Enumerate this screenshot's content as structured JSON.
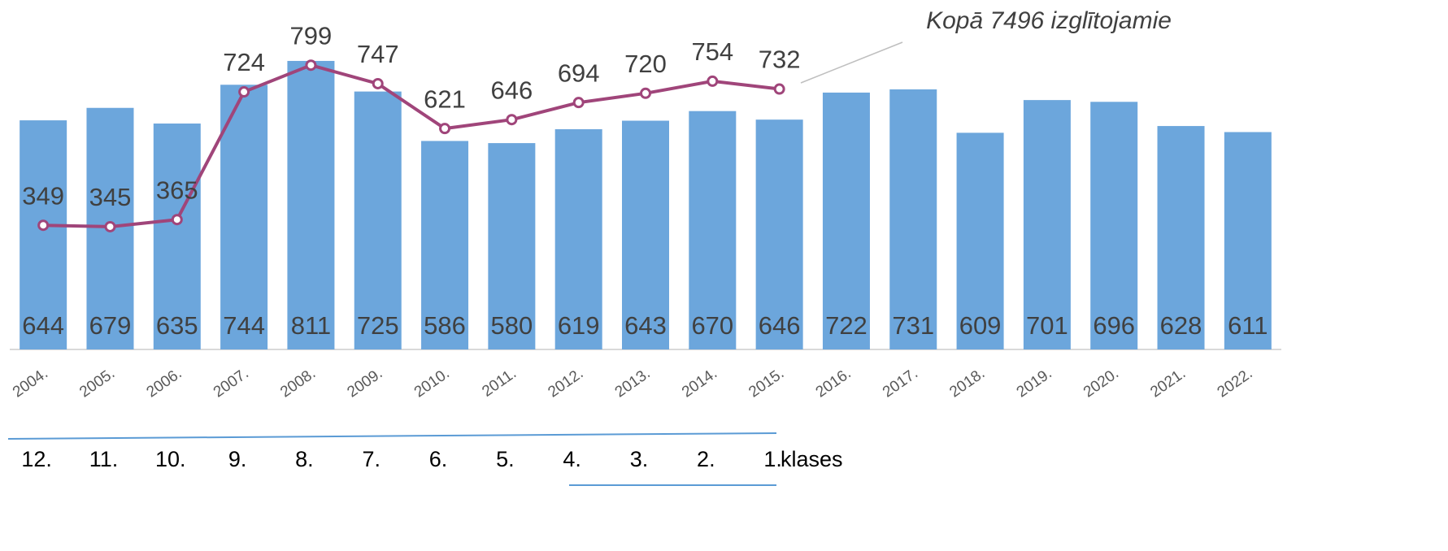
{
  "chart_data": {
    "type": "bar",
    "categories": [
      "2004.",
      "2005.",
      "2006.",
      "2007.",
      "2008.",
      "2009.",
      "2010.",
      "2011.",
      "2012.",
      "2013.",
      "2014.",
      "2015.",
      "2016.",
      "2017.",
      "2018.",
      "2019.",
      "2020.",
      "2021.",
      "2022."
    ],
    "series": [
      {
        "type": "bar",
        "color": "#6ca6dc",
        "values": [
          644,
          679,
          635,
          744,
          811,
          725,
          586,
          580,
          619,
          643,
          670,
          646,
          722,
          731,
          609,
          701,
          696,
          628,
          611
        ]
      },
      {
        "type": "line",
        "color": "#a0457a",
        "values": [
          349,
          345,
          365,
          724,
          799,
          747,
          621,
          646,
          694,
          720,
          754,
          732,
          null,
          null,
          null,
          null,
          null,
          null,
          null
        ]
      }
    ],
    "ylim": [
      0,
      900
    ],
    "annotation": "Kopā 7496  izglītojamie",
    "class_labels": [
      "12.",
      "11.",
      "10.",
      "9.",
      "8.",
      "7.",
      "6.",
      "5.",
      "4.",
      "3.",
      "2.",
      "1."
    ],
    "class_suffix": "klases"
  }
}
